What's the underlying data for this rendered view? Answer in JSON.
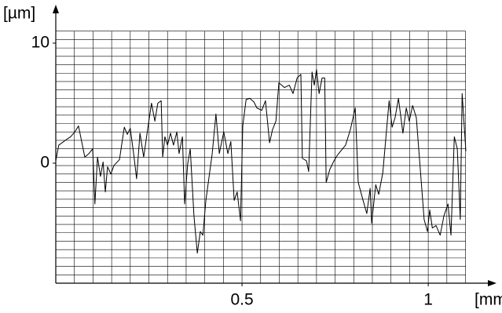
{
  "chart_data": {
    "type": "line",
    "x_label": "[mm]",
    "y_label": "[µm]",
    "xlim": [
      0,
      1.101
    ],
    "ylim": [
      -10,
      11
    ],
    "xticks": [
      0.5,
      1
    ],
    "yticks": [
      0,
      10
    ],
    "grid": true,
    "grid_step": {
      "x": 0.05,
      "y": 0.7
    },
    "color": "#000000",
    "x": [
      0,
      0.008,
      0.03,
      0.04,
      0.051,
      0.061,
      0.078,
      0.089,
      0.099,
      0.105,
      0.112,
      0.12,
      0.127,
      0.133,
      0.139,
      0.148,
      0.156,
      0.171,
      0.184,
      0.192,
      0.2,
      0.209,
      0.217,
      0.226,
      0.236,
      0.247,
      0.257,
      0.266,
      0.274,
      0.283,
      0.287,
      0.293,
      0.3,
      0.308,
      0.316,
      0.325,
      0.331,
      0.34,
      0.346,
      0.354,
      0.361,
      0.371,
      0.38,
      0.388,
      0.395,
      0.403,
      0.42,
      0.43,
      0.439,
      0.451,
      0.462,
      0.47,
      0.479,
      0.487,
      0.496,
      0.502,
      0.511,
      0.521,
      0.532,
      0.54,
      0.553,
      0.563,
      0.574,
      0.582,
      0.591,
      0.599,
      0.614,
      0.627,
      0.637,
      0.648,
      0.658,
      0.662,
      0.673,
      0.679,
      0.688,
      0.694,
      0.7,
      0.707,
      0.715,
      0.722,
      0.726,
      0.736,
      0.747,
      0.757,
      0.77,
      0.778,
      0.791,
      0.804,
      0.812,
      0.825,
      0.835,
      0.844,
      0.848,
      0.859,
      0.867,
      0.878,
      0.895,
      0.903,
      0.911,
      0.92,
      0.932,
      0.941,
      0.949,
      0.958,
      0.968,
      0.989,
      0.998,
      1.004,
      1.011,
      1.021,
      1.032,
      1.042,
      1.053,
      1.061,
      1.07,
      1.078,
      1.086,
      1.091,
      1.101
    ],
    "values": [
      0.2,
      1.5,
      2.0,
      2.2,
      2.6,
      3.1,
      0.5,
      0.8,
      1.2,
      -3.4,
      0.5,
      -1.1,
      0.1,
      -2.4,
      -0.3,
      -0.9,
      -0.2,
      0.3,
      3.0,
      2.4,
      2.9,
      0.8,
      -1.3,
      2.5,
      0.5,
      2.9,
      5.0,
      3.5,
      5.0,
      5.2,
      0.5,
      2.2,
      1.5,
      2.5,
      1.5,
      2.6,
      0.8,
      2.2,
      -3.4,
      -0.1,
      1.2,
      -4.4,
      -7.5,
      -5.7,
      -6.0,
      -3.1,
      0.8,
      4.1,
      0.8,
      2.6,
      0.8,
      1.8,
      -3.1,
      -2.4,
      -4.8,
      3.1,
      5.3,
      5.4,
      5.1,
      4.6,
      4.4,
      5.2,
      1.7,
      2.8,
      3.5,
      6.7,
      6.3,
      6.5,
      5.8,
      7.1,
      7.4,
      0.4,
      0.2,
      -0.7,
      7.6,
      6.5,
      7.8,
      5.8,
      7.1,
      7.1,
      -1.6,
      -0.5,
      0.2,
      0.7,
      1.2,
      1.5,
      2.8,
      4.6,
      -1.6,
      -3.1,
      -4.2,
      -2.1,
      -5.0,
      -1.8,
      -2.6,
      -0.8,
      5.2,
      3.0,
      3.8,
      5.4,
      2.5,
      4.6,
      3.5,
      4.8,
      3.8,
      -4.7,
      -5.7,
      -3.9,
      -5.4,
      -5.2,
      -6.0,
      -4.4,
      -3.4,
      -6.0,
      2.2,
      1.2,
      -4.7,
      5.8,
      1.0
    ]
  }
}
